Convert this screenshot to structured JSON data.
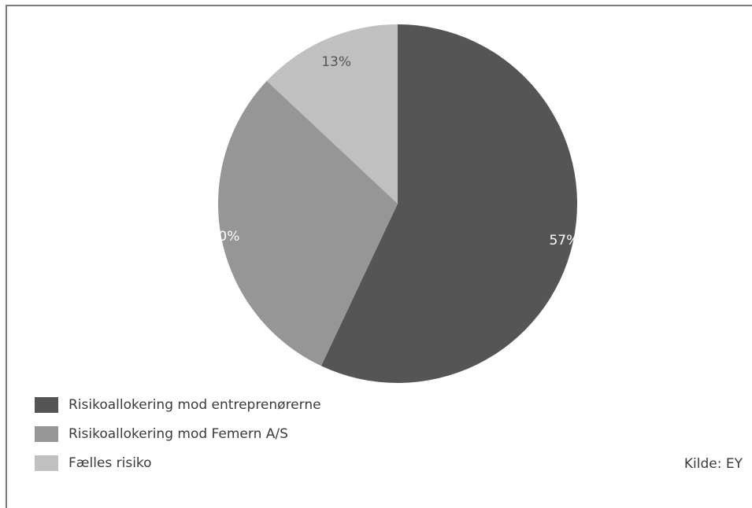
{
  "chart_data": {
    "type": "pie",
    "title": "",
    "slices": [
      {
        "label": "Risikoallokering mod entreprenørerne",
        "value": 57,
        "display": "57%",
        "color": "#555555",
        "label_color": "#ffffff"
      },
      {
        "label": "Risikoallokering mod Femern A/S",
        "value": 30,
        "display": "30%",
        "color": "#969696",
        "label_color": "#ffffff"
      },
      {
        "label": "Fælles risiko",
        "value": 13,
        "display": "13%",
        "color": "#c0c0c0",
        "label_color": "#555555"
      }
    ],
    "legend_position": "bottom-left",
    "start_angle": "12 o'clock",
    "direction": "clockwise"
  },
  "source_note": "Kilde: EY"
}
